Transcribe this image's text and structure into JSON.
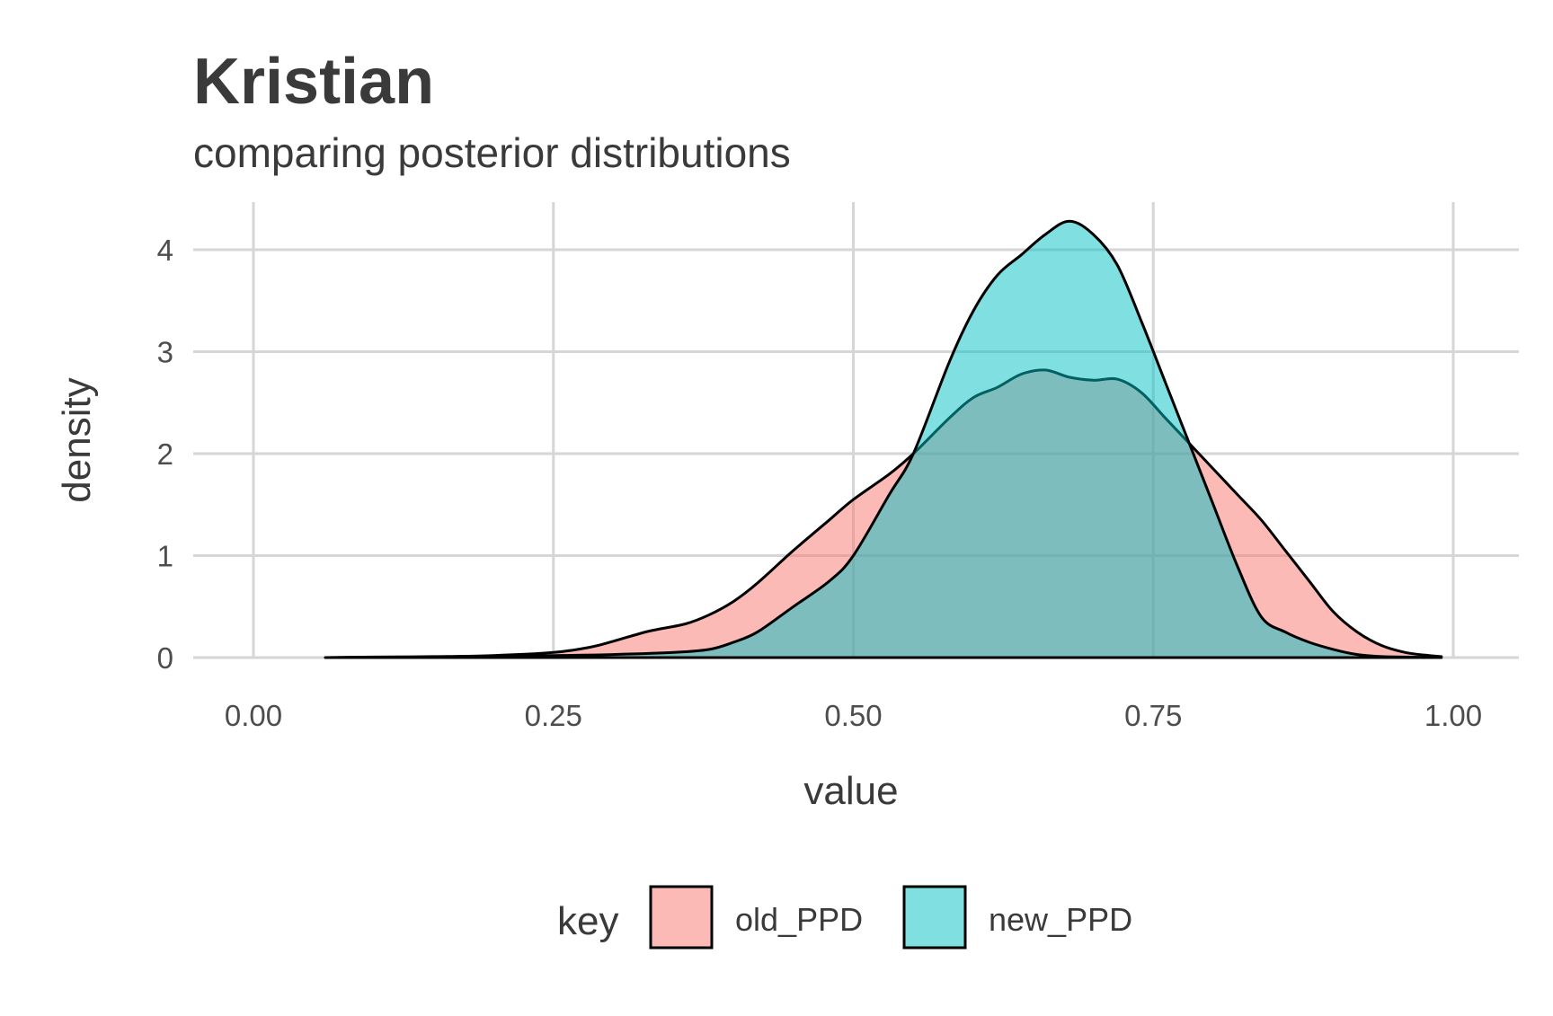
{
  "chart_data": {
    "type": "area",
    "title": "Kristian",
    "subtitle": "comparing posterior distributions",
    "xlabel": "value",
    "ylabel": "density",
    "xlim": [
      0,
      1
    ],
    "ylim": [
      0,
      4.3
    ],
    "x_ticks": [
      0,
      0.25,
      0.5,
      0.75,
      1.0
    ],
    "x_tick_labels": [
      "0.00",
      "0.25",
      "0.50",
      "0.75",
      "1.00"
    ],
    "y_ticks": [
      0,
      1,
      2,
      3,
      4
    ],
    "y_tick_labels": [
      "0",
      "1",
      "2",
      "3",
      "4"
    ],
    "grid": true,
    "legend": {
      "title": "key",
      "placement": "bottom",
      "entries": [
        "old_PPD",
        "new_PPD"
      ]
    },
    "series": [
      {
        "name": "old_PPD",
        "color": "#F8766D",
        "x": [
          0.06,
          0.1,
          0.15,
          0.2,
          0.25,
          0.28,
          0.3,
          0.33,
          0.36,
          0.38,
          0.4,
          0.42,
          0.45,
          0.48,
          0.5,
          0.53,
          0.55,
          0.58,
          0.6,
          0.62,
          0.64,
          0.66,
          0.68,
          0.7,
          0.72,
          0.74,
          0.76,
          0.78,
          0.8,
          0.82,
          0.84,
          0.86,
          0.88,
          0.9,
          0.92,
          0.94,
          0.96,
          0.98,
          0.99
        ],
        "y": [
          0,
          0.005,
          0.01,
          0.02,
          0.05,
          0.1,
          0.16,
          0.26,
          0.33,
          0.42,
          0.55,
          0.73,
          1.05,
          1.35,
          1.55,
          1.8,
          2.0,
          2.35,
          2.55,
          2.65,
          2.78,
          2.82,
          2.75,
          2.72,
          2.73,
          2.6,
          2.35,
          2.1,
          1.85,
          1.6,
          1.35,
          1.05,
          0.75,
          0.45,
          0.25,
          0.12,
          0.05,
          0.02,
          0.01
        ]
      },
      {
        "name": "new_PPD",
        "color": "#00BFC4",
        "x": [
          0.06,
          0.15,
          0.25,
          0.3,
          0.35,
          0.38,
          0.4,
          0.42,
          0.45,
          0.48,
          0.5,
          0.53,
          0.55,
          0.58,
          0.6,
          0.62,
          0.64,
          0.66,
          0.68,
          0.7,
          0.72,
          0.74,
          0.76,
          0.78,
          0.8,
          0.82,
          0.84,
          0.86,
          0.88,
          0.9,
          0.92,
          0.94,
          0.96,
          0.99
        ],
        "y": [
          0,
          0.005,
          0.02,
          0.03,
          0.05,
          0.08,
          0.15,
          0.25,
          0.5,
          0.75,
          1.0,
          1.6,
          2.0,
          2.9,
          3.4,
          3.75,
          3.95,
          4.15,
          4.28,
          4.15,
          3.85,
          3.3,
          2.7,
          2.1,
          1.5,
          0.9,
          0.4,
          0.25,
          0.15,
          0.08,
          0.03,
          0.01,
          0.005,
          0
        ]
      }
    ]
  }
}
